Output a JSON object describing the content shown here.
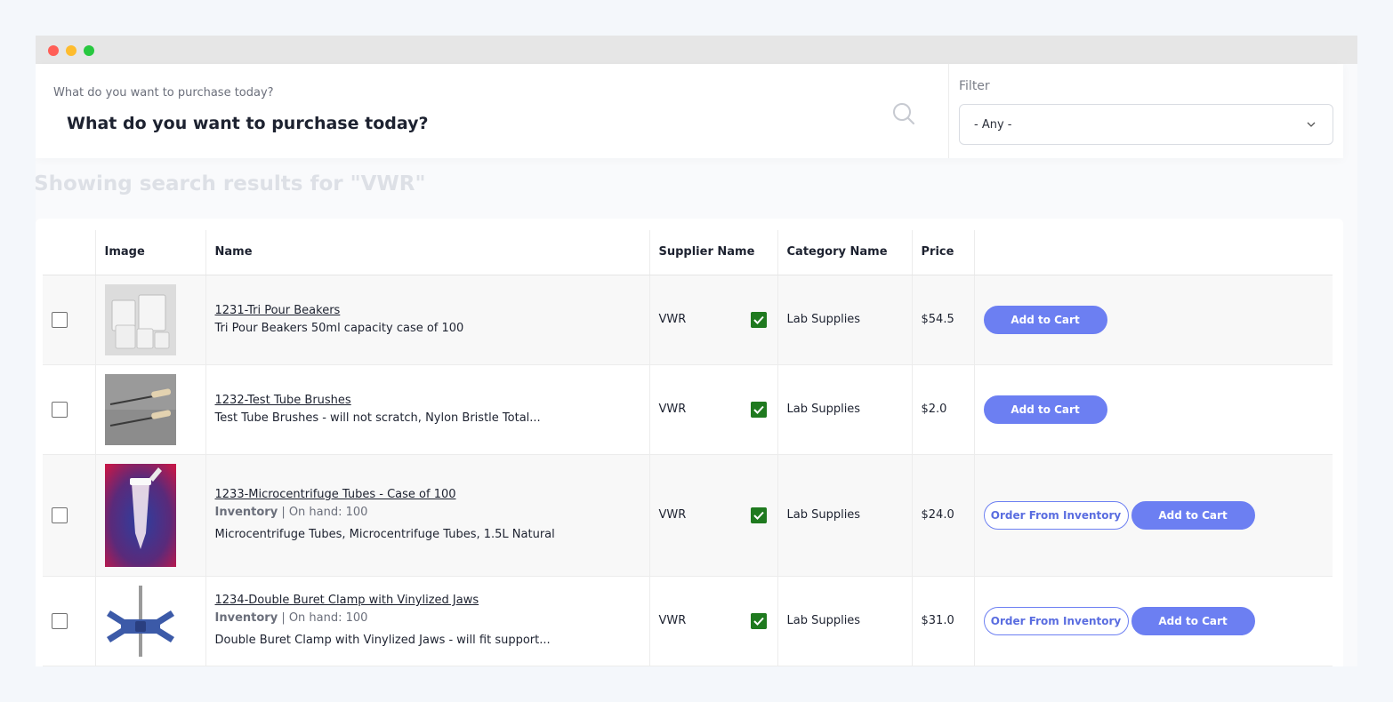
{
  "search": {
    "caption": "What do you want to purchase today?",
    "placeholder": "What do you want to purchase today?"
  },
  "filter": {
    "label": "Filter",
    "selected": "- Any -"
  },
  "results_title": "Showing search results for \"VWR\"",
  "table": {
    "headers": {
      "image": "Image",
      "name": "Name",
      "supplier": "Supplier Name",
      "category": "Category Name",
      "price": "Price"
    },
    "rows": [
      {
        "title": "1231-Tri Pour Beakers",
        "description": "Tri Pour Beakers 50ml capacity case of 100",
        "supplier": "VWR",
        "category": "Lab Supplies",
        "price": "$54.5",
        "add_label": "Add to Cart"
      },
      {
        "title": "1232-Test Tube Brushes",
        "description": "Test Tube Brushes - will not scratch, Nylon Bristle Total...",
        "supplier": "VWR",
        "category": "Lab Supplies",
        "price": "$2.0",
        "add_label": "Add to Cart"
      },
      {
        "title": "1233-Microcentrifuge Tubes - Case of 100",
        "inventory_label": "Inventory",
        "inventory_text": "| On hand: 100",
        "description": "Microcentrifuge Tubes, Microcentrifuge Tubes, 1.5L Natural",
        "supplier": "VWR",
        "category": "Lab Supplies",
        "price": "$24.0",
        "order_label": "Order From Inventory",
        "add_label": "Add to Cart"
      },
      {
        "title": "1234-Double Buret Clamp with Vinylized Jaws",
        "inventory_label": "Inventory",
        "inventory_text": "| On hand: 100",
        "description": "Double Buret Clamp with Vinylized Jaws - will fit support...",
        "supplier": "VWR",
        "category": "Lab Supplies",
        "price": "$31.0",
        "order_label": "Order From Inventory",
        "add_label": "Add to Cart"
      }
    ]
  },
  "colors": {
    "primary": "#6c7ff2",
    "check": "#1f7a1f",
    "titlebar": "#e6e6e6"
  }
}
